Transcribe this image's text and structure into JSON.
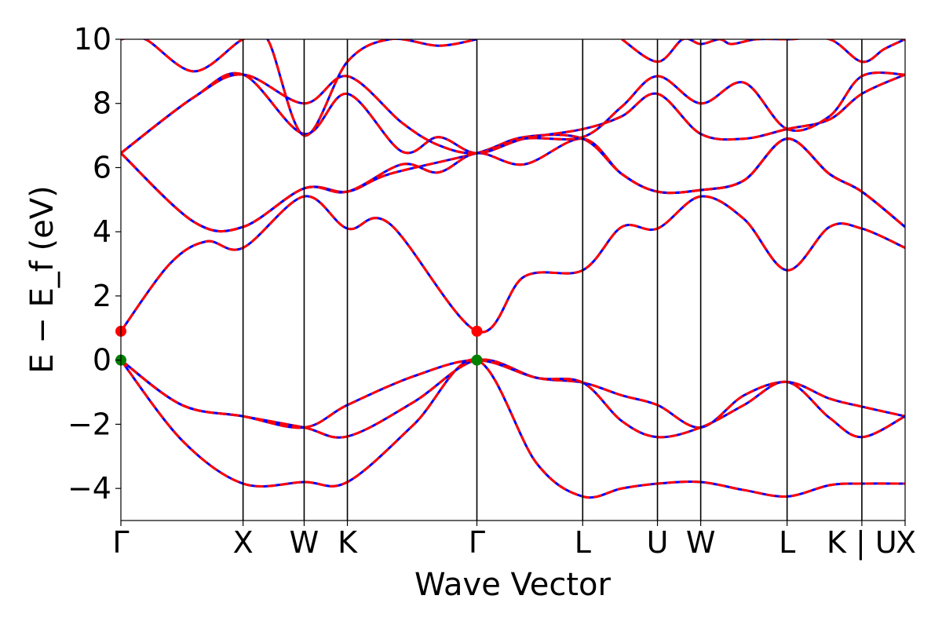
{
  "chart_data": {
    "type": "line",
    "xlabel": "Wave Vector",
    "ylabel": "E − E_f (eV)",
    "ylim": [
      -5,
      10
    ],
    "yticks": [
      -4,
      -2,
      0,
      2,
      4,
      6,
      8,
      10
    ],
    "ytick_labels": [
      "−4",
      "−2",
      "0",
      "2",
      "4",
      "6",
      "8",
      "10"
    ],
    "grid": false,
    "kpath": [
      {
        "label": "Γ",
        "k": 0.0
      },
      {
        "label": "X",
        "k": 1.0
      },
      {
        "label": "W",
        "k": 1.5
      },
      {
        "label": "K",
        "k": 1.854
      },
      {
        "label": "Γ",
        "k": 2.914
      },
      {
        "label": "L",
        "k": 3.78
      },
      {
        "label": "U",
        "k": 4.392
      },
      {
        "label": "W",
        "k": 4.746
      },
      {
        "label": "L",
        "k": 5.453
      },
      {
        "label": "K | U",
        "k": 6.065
      },
      {
        "label": "X",
        "k": 6.419
      }
    ],
    "xlim": [
      0,
      6.419
    ],
    "line_styles": [
      {
        "color": "#0000ff",
        "style": "solid"
      },
      {
        "color": "#ff0000",
        "style": "dashed"
      }
    ],
    "series": [
      {
        "x": [
          0,
          0.5,
          1.0,
          1.5,
          1.854,
          2.4,
          2.914,
          3.4,
          3.78,
          4.1,
          4.392,
          4.746,
          5.1,
          5.453,
          5.8,
          6.065,
          6.419
        ],
        "values": [
          0,
          -2.5,
          -3.85,
          -3.8,
          -3.8,
          -2.0,
          0,
          -3.2,
          -4.25,
          -4.0,
          -3.85,
          -3.8,
          -4.05,
          -4.25,
          -3.9,
          -3.85,
          -3.85
        ]
      },
      {
        "x": [
          0,
          0.5,
          1.0,
          1.5,
          1.854,
          2.4,
          2.914,
          3.4,
          3.78,
          4.1,
          4.392,
          4.746,
          5.1,
          5.453,
          5.8,
          6.065,
          6.419
        ],
        "values": [
          0,
          -1.4,
          -1.75,
          -2.1,
          -2.38,
          -1.3,
          0,
          -0.55,
          -0.7,
          -1.1,
          -1.4,
          -2.1,
          -1.1,
          -0.68,
          -1.2,
          -1.45,
          -1.75
        ]
      },
      {
        "x": [
          0,
          0.5,
          1.0,
          1.5,
          1.854,
          2.4,
          2.914,
          3.4,
          3.78,
          4.1,
          4.392,
          4.746,
          5.1,
          5.453,
          5.8,
          6.065,
          6.419
        ],
        "values": [
          0,
          -1.4,
          -1.75,
          -2.1,
          -1.4,
          -0.5,
          0,
          -0.55,
          -0.7,
          -1.9,
          -2.4,
          -2.1,
          -1.4,
          -0.68,
          -1.8,
          -2.4,
          -1.75
        ]
      },
      {
        "x": [
          0,
          0.4,
          0.7,
          1.0,
          1.5,
          1.854,
          2.2,
          2.914,
          3.3,
          3.78,
          4.1,
          4.392,
          4.746,
          5.1,
          5.453,
          5.8,
          6.065,
          6.419
        ],
        "values": [
          0.9,
          3.0,
          3.7,
          3.5,
          5.1,
          4.1,
          4.25,
          0.9,
          2.6,
          2.8,
          4.15,
          4.1,
          5.1,
          4.4,
          2.8,
          4.15,
          4.1,
          3.5
        ]
      },
      {
        "x": [
          0,
          0.6,
          1.0,
          1.5,
          1.854,
          2.2,
          2.914,
          3.3,
          3.78,
          4.1,
          4.392,
          4.746,
          5.1,
          5.453,
          5.8,
          6.065,
          6.419
        ],
        "values": [
          6.45,
          4.3,
          4.15,
          5.35,
          5.25,
          5.8,
          6.45,
          6.95,
          6.9,
          5.8,
          5.25,
          5.3,
          5.6,
          6.9,
          5.8,
          5.25,
          4.15
        ]
      },
      {
        "x": [
          0,
          0.6,
          1.0,
          1.5,
          1.854,
          2.3,
          2.6,
          2.914,
          3.3,
          3.78,
          4.1,
          4.392,
          4.746,
          5.1,
          5.453,
          5.8,
          6.065,
          6.419
        ],
        "values": [
          6.45,
          4.3,
          4.15,
          5.35,
          5.25,
          6.1,
          5.85,
          6.45,
          6.1,
          6.9,
          5.8,
          5.25,
          5.3,
          5.6,
          6.9,
          5.8,
          5.25,
          4.15
        ]
      },
      {
        "x": [
          0,
          0.6,
          1.0,
          1.5,
          1.854,
          2.3,
          2.6,
          2.914,
          3.3,
          3.78,
          4.1,
          4.392,
          4.746,
          5.1,
          5.453,
          5.8,
          6.065,
          6.419
        ],
        "values": [
          6.45,
          8.2,
          8.9,
          7.05,
          8.3,
          6.5,
          6.95,
          6.45,
          6.9,
          7.2,
          7.6,
          8.3,
          7.05,
          6.9,
          7.2,
          7.5,
          8.3,
          8.9
        ]
      },
      {
        "x": [
          0,
          0.6,
          1.0,
          1.5,
          1.854,
          2.3,
          2.6,
          2.914,
          3.3,
          3.78,
          4.1,
          4.392,
          4.746,
          5.1,
          5.453,
          5.8,
          6.065,
          6.419
        ],
        "values": [
          6.45,
          8.2,
          8.9,
          8.0,
          8.85,
          7.4,
          6.7,
          6.45,
          6.9,
          6.95,
          7.9,
          8.85,
          8.0,
          8.65,
          7.2,
          7.6,
          8.85,
          8.9
        ]
      },
      {
        "x": [
          0,
          0.2,
          0.6,
          1.0,
          1.2,
          1.5,
          1.854,
          2.2,
          2.6,
          2.914
        ],
        "values": [
          10.0,
          10.0,
          9.0,
          10.0,
          10.0,
          7.0,
          9.3,
          10.0,
          9.8,
          10.0
        ]
      },
      {
        "x": [
          4.1,
          4.392,
          4.6,
          4.746,
          4.9,
          5.0,
          5.2,
          5.453,
          5.8,
          6.065,
          6.25,
          6.419
        ],
        "values": [
          10.0,
          9.3,
          10.0,
          9.85,
          10.0,
          9.85,
          10.0,
          10.0,
          10.0,
          9.3,
          9.7,
          10.0
        ]
      }
    ],
    "markers": [
      {
        "x": 0.0,
        "y": 0.9,
        "color": "#ff0000"
      },
      {
        "x": 0.0,
        "y": 0.0,
        "color": "#008000"
      },
      {
        "x": 2.914,
        "y": 0.9,
        "color": "#ff0000"
      },
      {
        "x": 2.914,
        "y": 0.0,
        "color": "#008000"
      }
    ]
  }
}
